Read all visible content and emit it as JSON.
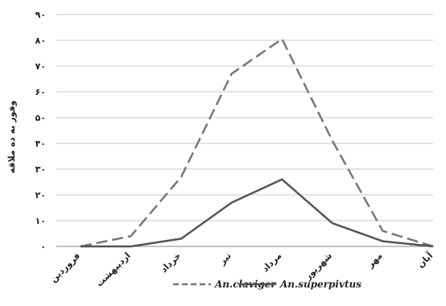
{
  "chart_data": {
    "type": "line",
    "ylabel": "وفور به ده ملاقه",
    "xlabel": "",
    "categories": [
      "فروردین",
      "اردیبهشت",
      "خرداد",
      "تیر",
      "مرداد",
      "شهریور",
      "مهر",
      "آبان"
    ],
    "y_tick_labels": [
      "۰",
      "۱۰",
      "۲۰",
      "۳۰",
      "۴۰",
      "۵۰",
      "۶۰",
      "۷۰",
      "۸۰",
      "۹۰"
    ],
    "ylim": [
      0,
      90
    ],
    "grid": true,
    "legend_position": "bottom",
    "series": [
      {
        "name": "An.claviger",
        "style": "dashed",
        "color": "#777777",
        "values": [
          0,
          4,
          27,
          67,
          80.5,
          41,
          6,
          0
        ]
      },
      {
        "name": "An.superpivtus",
        "style": "solid",
        "color": "#555555",
        "values": [
          0,
          0,
          3,
          17,
          26,
          9,
          2,
          0
        ]
      }
    ]
  }
}
